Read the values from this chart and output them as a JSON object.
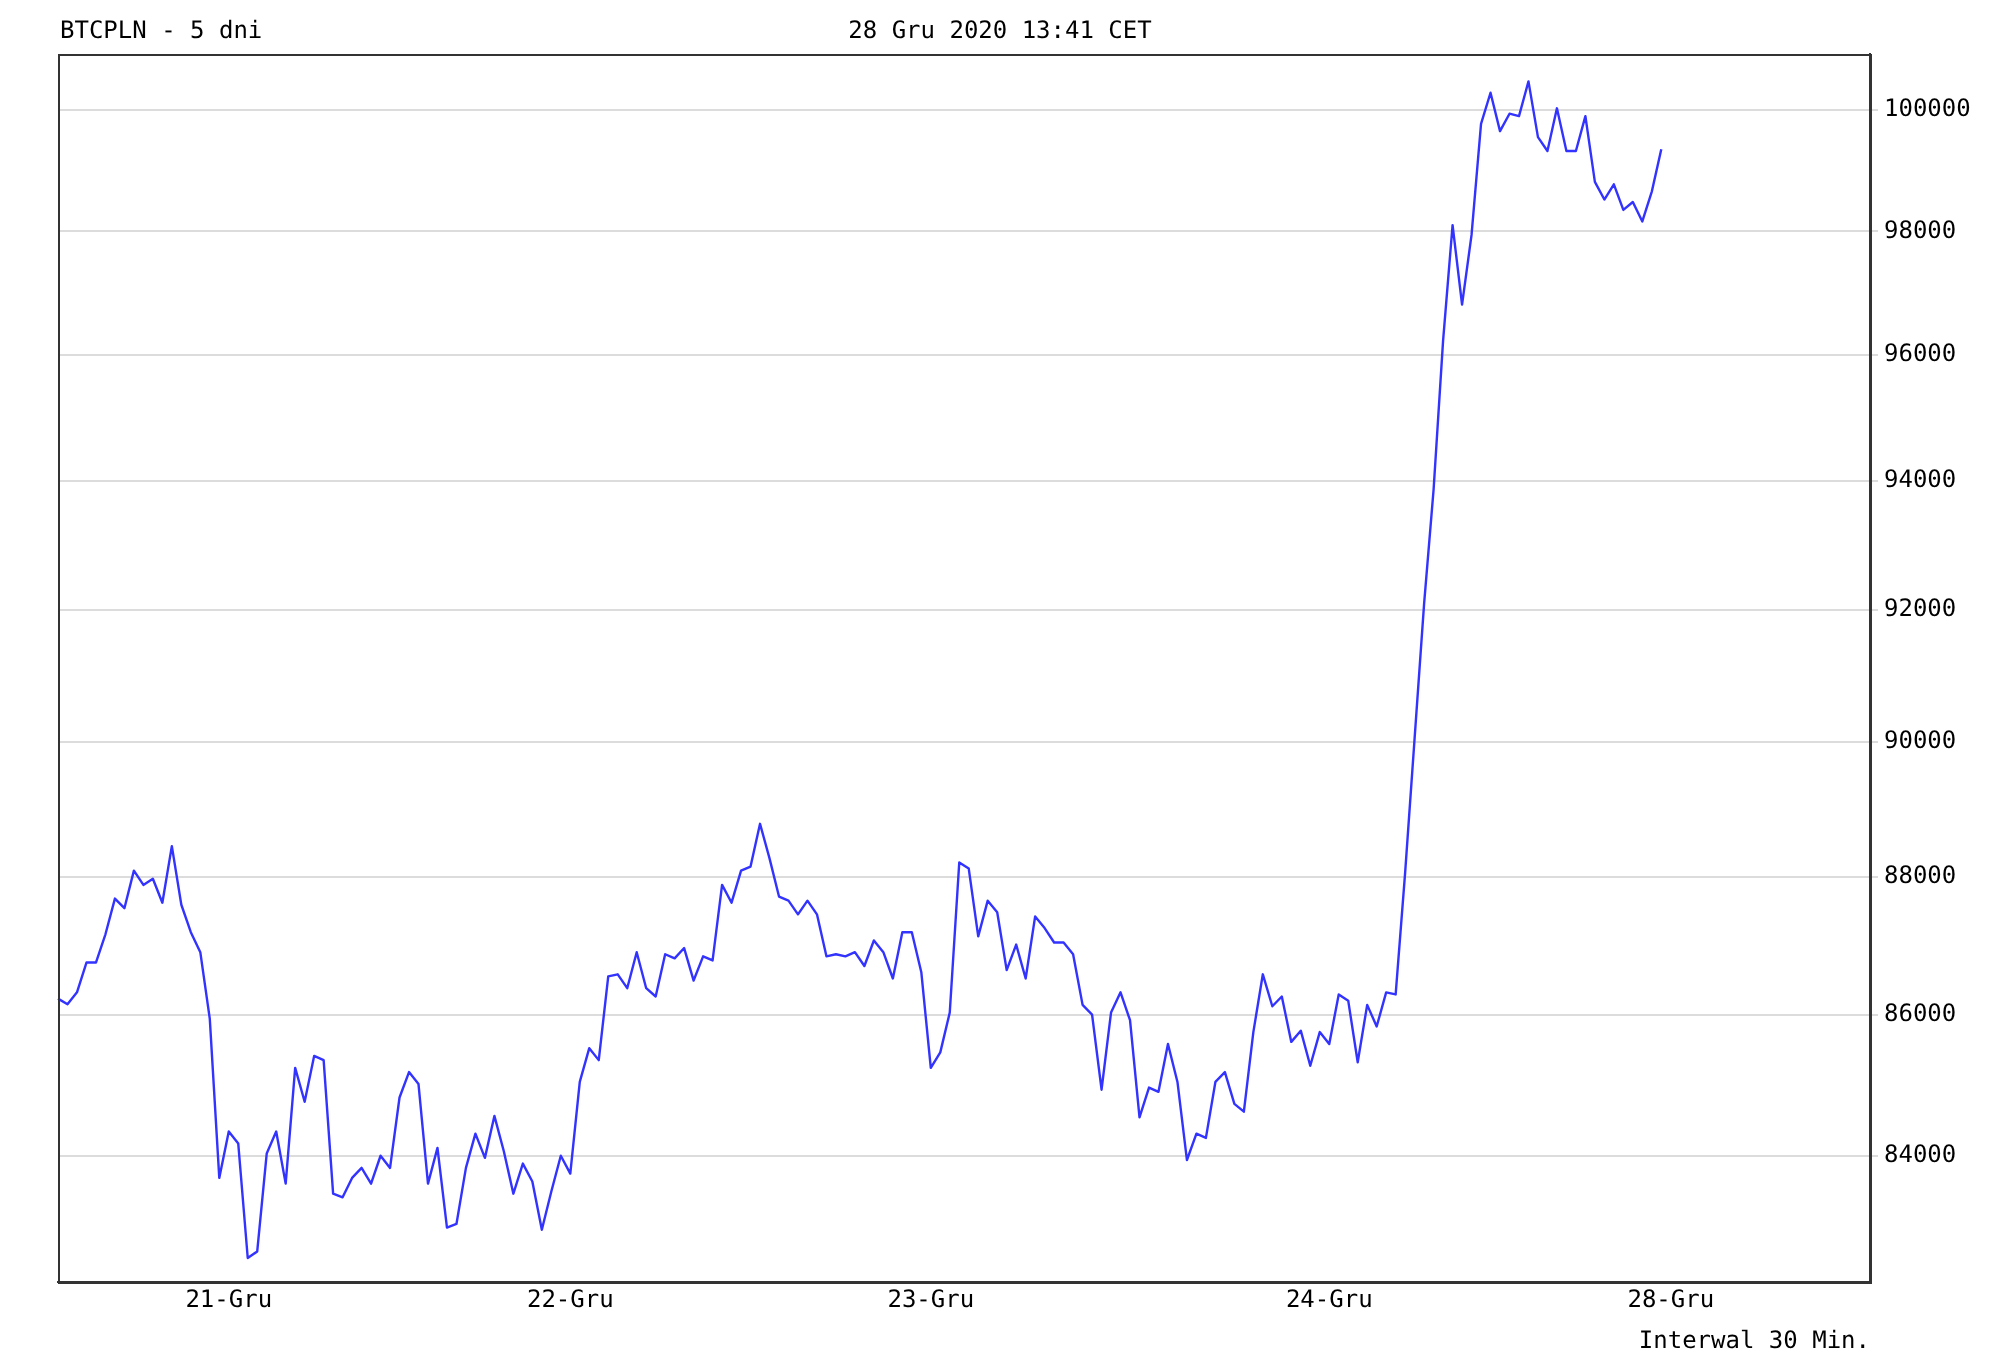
{
  "chart_data": {
    "type": "line",
    "title": "BTCPLN - 5 dni",
    "subtitle": "28 Gru 2020 13:41 CET",
    "annotations": [
      "Interwal 30 Min."
    ],
    "categories": [
      null,
      null,
      null,
      null,
      null,
      null,
      null,
      null,
      null,
      null,
      null,
      null,
      null,
      null,
      null,
      null,
      null,
      null,
      "21-Gru",
      null,
      null,
      null,
      null,
      null,
      null,
      null,
      null,
      null,
      null,
      null,
      null,
      null,
      null,
      null,
      null,
      null,
      null,
      null,
      null,
      null,
      null,
      null,
      null,
      null,
      null,
      null,
      null,
      null,
      null,
      null,
      null,
      null,
      null,
      null,
      "22-Gru",
      null,
      null,
      null,
      null,
      null,
      null,
      null,
      null,
      null,
      null,
      null,
      null,
      null,
      null,
      null,
      null,
      null,
      null,
      null,
      null,
      null,
      null,
      null,
      null,
      null,
      null,
      null,
      null,
      null,
      null,
      null,
      null,
      null,
      null,
      null,
      null,
      null,
      "23-Gru",
      null,
      null,
      null,
      null,
      null,
      null,
      null,
      null,
      null,
      null,
      null,
      null,
      null,
      null,
      null,
      null,
      null,
      null,
      null,
      null,
      null,
      null,
      null,
      null,
      null,
      null,
      null,
      null,
      null,
      null,
      null,
      null,
      null,
      null,
      null,
      null,
      null,
      null,
      null,
      null,
      null,
      "24-Gru",
      null,
      null,
      null,
      null,
      null,
      null,
      null,
      null,
      null,
      null,
      null,
      null,
      null,
      null,
      null,
      null,
      null,
      null,
      null,
      null,
      null,
      null,
      null,
      null,
      null,
      null,
      null,
      null,
      null,
      null,
      null,
      null,
      null,
      null,
      null,
      "28-Gru",
      null,
      null,
      null,
      null,
      null,
      null,
      null,
      null,
      null,
      null,
      null,
      null,
      null,
      null,
      null,
      null,
      null,
      null,
      null,
      null,
      null
    ],
    "series": [
      {
        "color": "#3333ff",
        "values": [
          86230,
          86150,
          86320,
          86750,
          86750,
          87160,
          87680,
          87540,
          88090,
          87880,
          87970,
          87620,
          88450,
          87590,
          87190,
          86900,
          85940,
          83690,
          84340,
          84170,
          82580,
          82670,
          84030,
          84340,
          83610,
          85240,
          84760,
          85410,
          85350,
          83470,
          83420,
          83690,
          83830,
          83610,
          84000,
          83830,
          84820,
          85180,
          85010,
          83610,
          84110,
          83000,
          83050,
          83830,
          84310,
          83970,
          84560,
          84060,
          83470,
          83890,
          83640,
          82970,
          83500,
          84000,
          83750,
          85040,
          85520,
          85350,
          86550,
          86580,
          86380,
          86900,
          86380,
          86260,
          86870,
          86810,
          86960,
          86490,
          86840,
          86780,
          87880,
          87620,
          88090,
          88150,
          88780,
          88270,
          87710,
          87650,
          87450,
          87650,
          87450,
          86840,
          86870,
          86840,
          86900,
          86700,
          87070,
          86900,
          86520,
          87190,
          87190,
          86610,
          85240,
          85460,
          86030,
          88210,
          88120,
          87130,
          87650,
          87480,
          86640,
          87010,
          86520,
          87420,
          87250,
          87040,
          87040,
          86870,
          86140,
          86000,
          84930,
          86030,
          86320,
          85920,
          84540,
          84960,
          84900,
          85580,
          85040,
          83940,
          84310,
          84250,
          85040,
          85180,
          84730,
          84620,
          85750,
          86580,
          86120,
          86260,
          85610,
          85770,
          85270,
          85750,
          85580,
          86290,
          86200,
          85320,
          86140,
          85830,
          86320,
          86290,
          88060,
          90060,
          92100,
          93870,
          96230,
          98100,
          96810,
          97940,
          99770,
          100290,
          99650,
          99940,
          99900,
          100480,
          99550,
          99320,
          100030,
          99320,
          99320,
          99900,
          98810,
          98520,
          98770,
          98350,
          98480,
          98160,
          98650,
          99350,
          null,
          null,
          null,
          null,
          null,
          null,
          null,
          null,
          null,
          null,
          null,
          null,
          null,
          null,
          null,
          null,
          null,
          null,
          null,
          null,
          null,
          null
        ]
      }
    ],
    "ylim": [
      82250,
      100940
    ],
    "yticks": [
      84000,
      86000,
      88000,
      90000,
      92000,
      94000,
      96000,
      98000,
      100000
    ],
    "log": true,
    "grid": "y",
    "legend": false,
    "marker": "none",
    "line_style": "solid"
  }
}
